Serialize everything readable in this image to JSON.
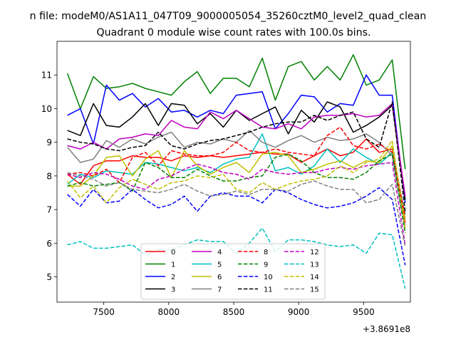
{
  "chart_data": {
    "type": "line",
    "suptitle": "n file: modeM0/AS1A11_047T09_9000005054_35260cztM0_level2_quad_clean",
    "title": "Quadrant 0 module wise count rates with 100.0s bins.",
    "xlabel": "",
    "ylabel": "",
    "x_offset_text": "+3.8691e8",
    "xlim": [
      7140,
      9860
    ],
    "ylim": [
      4.25,
      12.0
    ],
    "xticks": [
      7500,
      8000,
      8500,
      9000,
      9500
    ],
    "yticks": [
      5,
      6,
      7,
      8,
      9,
      10,
      11
    ],
    "x": [
      7220,
      7320,
      7420,
      7520,
      7620,
      7720,
      7820,
      7920,
      8020,
      8120,
      8220,
      8320,
      8420,
      8520,
      8620,
      8720,
      8820,
      8920,
      9020,
      9120,
      9220,
      9320,
      9420,
      9520,
      9620,
      9720,
      9820
    ],
    "legend_loc": "lower center",
    "series": [
      {
        "name": "0",
        "color": "#ff0000",
        "dash": "solid",
        "values": [
          8.05,
          7.75,
          8.3,
          8.45,
          8.45,
          8.6,
          8.55,
          8.55,
          8.45,
          8.6,
          8.55,
          8.6,
          8.55,
          8.6,
          8.65,
          8.7,
          8.65,
          8.65,
          8.4,
          8.6,
          8.8,
          8.6,
          8.7,
          9.1,
          8.7,
          8.8,
          6.6
        ]
      },
      {
        "name": "1",
        "color": "#008000",
        "dash": "solid",
        "values": [
          11.05,
          10.0,
          10.95,
          10.6,
          10.65,
          10.75,
          10.6,
          10.5,
          10.4,
          10.8,
          11.1,
          10.45,
          10.9,
          10.9,
          10.65,
          11.5,
          10.25,
          11.25,
          11.4,
          10.85,
          11.25,
          10.85,
          11.6,
          10.7,
          10.85,
          11.45,
          8.2
        ]
      },
      {
        "name": "2",
        "color": "#0000ff",
        "dash": "solid",
        "values": [
          9.8,
          10.0,
          8.95,
          10.7,
          10.25,
          10.45,
          10.05,
          10.3,
          9.9,
          9.95,
          9.75,
          9.95,
          9.85,
          10.4,
          10.45,
          10.5,
          9.4,
          9.85,
          10.4,
          10.35,
          9.9,
          10.15,
          10.1,
          11.0,
          10.4,
          10.4,
          7.2
        ]
      },
      {
        "name": "3",
        "color": "#000000",
        "dash": "solid",
        "values": [
          9.35,
          9.2,
          10.15,
          9.5,
          9.45,
          9.75,
          10.15,
          9.5,
          10.15,
          10.1,
          9.55,
          9.85,
          9.45,
          9.95,
          9.65,
          9.85,
          10.05,
          9.25,
          9.95,
          9.6,
          10.2,
          10.05,
          9.3,
          9.5,
          9.75,
          10.1,
          7.3
        ]
      },
      {
        "name": "4",
        "color": "#bf00bf",
        "dash": "solid",
        "values": [
          8.9,
          8.8,
          9.0,
          8.8,
          9.1,
          9.15,
          9.25,
          9.2,
          9.65,
          9.45,
          9.4,
          9.9,
          9.7,
          9.95,
          9.7,
          9.45,
          9.4,
          9.55,
          9.4,
          9.75,
          9.8,
          9.8,
          9.85,
          9.75,
          9.8,
          10.15,
          7.4
        ]
      },
      {
        "name": "5",
        "color": "#00bfbf",
        "dash": "solid",
        "values": [
          7.75,
          8.05,
          7.95,
          8.15,
          8.1,
          8.05,
          8.4,
          8.35,
          8.25,
          8.15,
          8.25,
          8.1,
          8.35,
          8.5,
          8.55,
          9.25,
          8.15,
          8.25,
          8.05,
          8.3,
          8.8,
          8.4,
          8.8,
          8.55,
          8.35,
          8.7,
          6.85
        ]
      },
      {
        "name": "6",
        "color": "#bfbf00",
        "dash": "solid",
        "values": [
          7.7,
          7.7,
          8.0,
          8.55,
          8.6,
          8.0,
          8.5,
          8.75,
          7.95,
          8.75,
          8.3,
          8.05,
          8.25,
          8.4,
          8.1,
          8.65,
          8.7,
          8.6,
          8.1,
          8.2,
          8.35,
          8.45,
          8.25,
          8.45,
          8.4,
          8.9,
          6.7
        ]
      },
      {
        "name": "7",
        "color": "#808080",
        "dash": "solid",
        "values": [
          8.85,
          8.4,
          8.5,
          9.05,
          8.85,
          9.1,
          8.95,
          9.15,
          9.3,
          8.85,
          9.0,
          8.95,
          9.1,
          9.0,
          9.35,
          9.0,
          8.85,
          9.05,
          9.2,
          9.0,
          9.15,
          9.05,
          9.1,
          9.25,
          9.0,
          8.6,
          6.45
        ]
      },
      {
        "name": "8",
        "color": "#ff0000",
        "dash": "dashed",
        "values": [
          8.05,
          8.1,
          8.0,
          8.2,
          7.8,
          8.55,
          8.7,
          8.3,
          8.75,
          8.65,
          8.6,
          8.6,
          8.7,
          9.0,
          8.75,
          8.7,
          8.8,
          8.7,
          8.65,
          8.6,
          9.2,
          9.45,
          8.9,
          8.8,
          8.95,
          8.7,
          6.8
        ]
      },
      {
        "name": "9",
        "color": "#008000",
        "dash": "dashed",
        "values": [
          7.7,
          7.8,
          7.7,
          7.75,
          7.8,
          7.55,
          8.4,
          8.25,
          7.95,
          7.95,
          8.2,
          8.0,
          7.85,
          7.85,
          7.95,
          8.0,
          8.55,
          8.65,
          8.45,
          8.1,
          7.95,
          7.95,
          7.9,
          8.1,
          8.45,
          8.65,
          6.3
        ]
      },
      {
        "name": "10",
        "color": "#0000ff",
        "dash": "dashed",
        "values": [
          7.45,
          7.1,
          7.6,
          7.2,
          7.25,
          7.6,
          7.3,
          7.05,
          7.15,
          7.4,
          6.95,
          7.4,
          7.5,
          7.4,
          7.4,
          7.2,
          7.6,
          7.5,
          7.3,
          7.15,
          7.05,
          7.1,
          7.2,
          7.4,
          7.65,
          7.3,
          5.35
        ]
      },
      {
        "name": "11",
        "color": "#000000",
        "dash": "dashed",
        "values": [
          9.1,
          9.0,
          8.95,
          8.8,
          8.75,
          8.85,
          8.9,
          9.3,
          8.9,
          8.8,
          8.95,
          9.05,
          9.1,
          9.2,
          9.3,
          9.45,
          9.55,
          9.6,
          9.6,
          9.8,
          9.65,
          9.8,
          9.9,
          9.1,
          8.85,
          10.2,
          6.95
        ]
      },
      {
        "name": "12",
        "color": "#bf00bf",
        "dash": "dashed",
        "values": [
          8.05,
          7.95,
          8.1,
          8.05,
          7.9,
          7.7,
          7.6,
          7.9,
          8.0,
          8.2,
          8.35,
          8.25,
          8.1,
          8.05,
          7.9,
          8.2,
          8.1,
          8.05,
          8.1,
          8.1,
          8.2,
          8.25,
          8.2,
          8.3,
          8.35,
          8.4,
          5.95
        ]
      },
      {
        "name": "13",
        "color": "#00bfbf",
        "dash": "dashed",
        "values": [
          5.95,
          6.05,
          5.85,
          5.85,
          5.9,
          5.95,
          5.65,
          5.8,
          5.8,
          5.95,
          6.1,
          6.05,
          6.05,
          5.7,
          6.0,
          6.45,
          5.75,
          6.1,
          6.1,
          6.05,
          5.95,
          5.9,
          5.95,
          5.7,
          6.3,
          6.25,
          4.65
        ]
      },
      {
        "name": "14",
        "color": "#bfbf00",
        "dash": "dashed",
        "values": [
          7.85,
          7.35,
          7.7,
          7.2,
          7.65,
          7.9,
          7.75,
          7.6,
          7.8,
          7.85,
          8.0,
          7.95,
          8.05,
          7.6,
          7.5,
          7.8,
          7.6,
          7.75,
          7.85,
          7.9,
          8.0,
          8.3,
          8.1,
          8.4,
          8.5,
          9.05,
          6.45
        ]
      },
      {
        "name": "15",
        "color": "#808080",
        "dash": "dashed",
        "values": [
          8.1,
          8.0,
          7.9,
          7.7,
          7.8,
          7.6,
          7.55,
          7.5,
          7.6,
          7.75,
          7.55,
          7.4,
          7.45,
          7.55,
          7.45,
          7.6,
          7.6,
          7.55,
          7.75,
          7.85,
          7.7,
          7.6,
          7.6,
          7.2,
          7.3,
          7.75,
          5.9
        ]
      }
    ]
  }
}
